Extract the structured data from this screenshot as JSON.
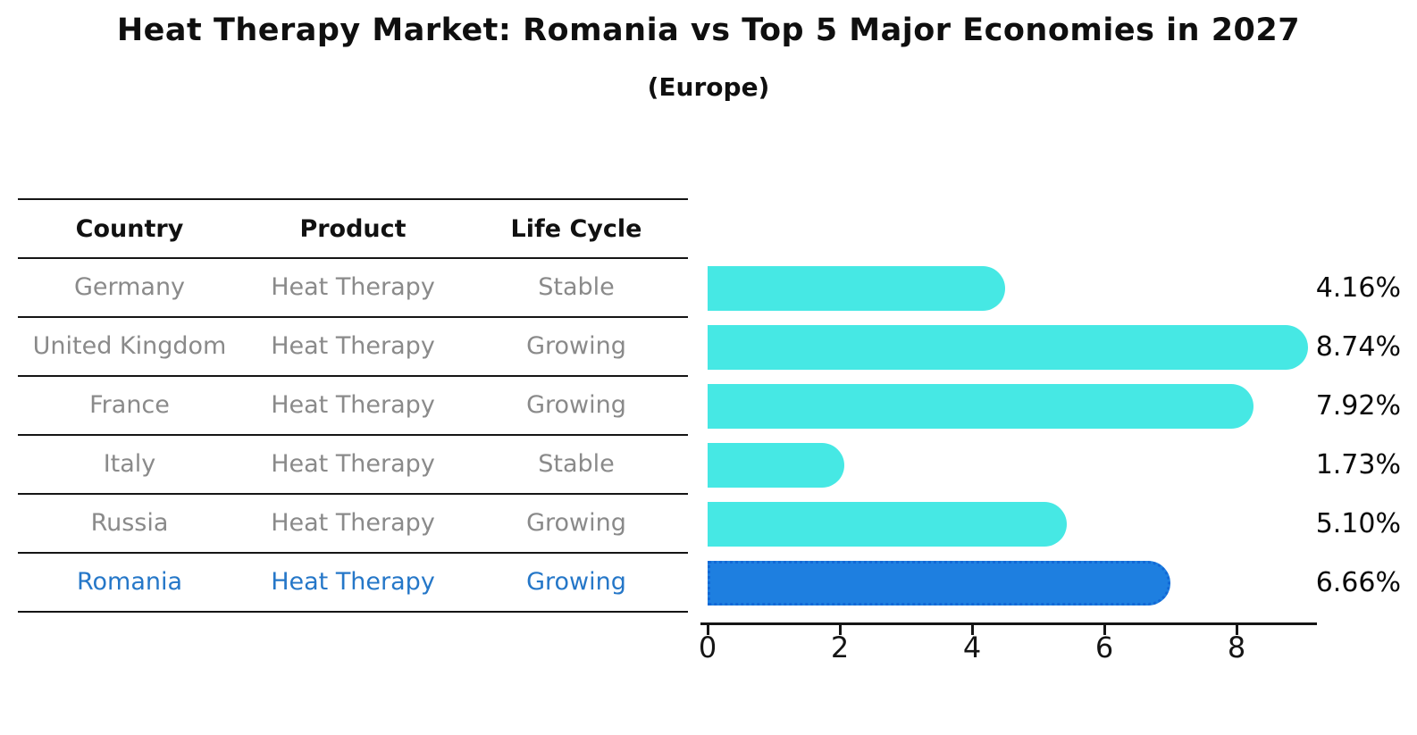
{
  "header": {
    "title": "Heat Therapy Market: Romania vs Top 5 Major Economies in 2027",
    "subtitle": "(Europe)"
  },
  "table": {
    "headers": [
      "Country",
      "Product",
      "Life Cycle"
    ]
  },
  "rows": [
    {
      "country": "Germany",
      "product": "Heat Therapy",
      "life_cycle": "Stable",
      "share": "4.16%",
      "value": 4.16,
      "highlight": false
    },
    {
      "country": "United Kingdom",
      "product": "Heat Therapy",
      "life_cycle": "Growing",
      "share": "8.74%",
      "value": 8.74,
      "highlight": false
    },
    {
      "country": "France",
      "product": "Heat Therapy",
      "life_cycle": "Growing",
      "share": "7.92%",
      "value": 7.92,
      "highlight": false
    },
    {
      "country": "Italy",
      "product": "Heat Therapy",
      "life_cycle": "Stable",
      "share": "1.73%",
      "value": 1.73,
      "highlight": false
    },
    {
      "country": "Russia",
      "product": "Heat Therapy",
      "life_cycle": "Growing",
      "share": "5.10%",
      "value": 5.1,
      "highlight": false
    },
    {
      "country": "Romania",
      "product": "Heat Therapy",
      "life_cycle": "Growing",
      "share": "6.66%",
      "value": 6.66,
      "highlight": true
    }
  ],
  "chart_data": {
    "type": "bar",
    "orientation": "horizontal",
    "title": "Heat Therapy Market: Romania vs Top 5 Major Economies in 2027",
    "subtitle": "(Europe)",
    "categories": [
      "Germany",
      "United Kingdom",
      "France",
      "Italy",
      "Russia",
      "Romania"
    ],
    "values": [
      4.16,
      8.74,
      7.92,
      1.73,
      5.1,
      6.66
    ],
    "data_labels": [
      "4.16%",
      "8.74%",
      "7.92%",
      "1.73%",
      "5.10%",
      "6.66%"
    ],
    "x_ticks": [
      0,
      2,
      4,
      6,
      8
    ],
    "xlim": [
      0,
      9.3
    ],
    "grid": false,
    "legend": "none",
    "highlight_category": "Romania"
  },
  "colors": {
    "bar": "#46E8E4",
    "highlight_bar": "#1E7FE0",
    "highlight_bar_border": "#1268D6",
    "highlight_text": "#2577C8",
    "row_text": "#8a8a8a",
    "axis": "#151515"
  }
}
